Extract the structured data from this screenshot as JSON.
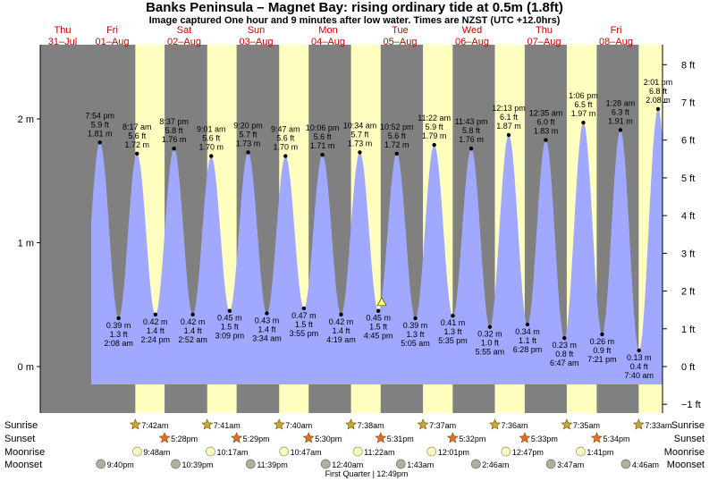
{
  "title": "Banks Peninsula – Magnet Bay: rising  ordinary tide at 0.5m (1.8ft)",
  "subtitle": "Image captured One hour and 9 minutes after low water. Times are NZST (UTC +12.0hrs)",
  "colors": {
    "night": "#808080",
    "day": "#ffffc0",
    "tide_fill": "#a0a8ff",
    "day_label": "#cc0000",
    "sun_star": "#c8a830",
    "sunset_star": "#e07030",
    "moonrise_disc": "#ffffc0",
    "moonset_disc": "#b0b0a0"
  },
  "chart_data": {
    "type": "area",
    "title": "Banks Peninsula – Magnet Bay: rising  ordinary tide at 0.5m (1.8ft)",
    "x_range_hours": [
      0,
      207.5
    ],
    "ylim_m": [
      -0.15,
      2.4
    ],
    "left_axis": {
      "unit": "m",
      "ticks": [
        {
          "v": 0,
          "label": "0 m"
        },
        {
          "v": 1,
          "label": "1 m"
        },
        {
          "v": 2,
          "label": "2 m"
        }
      ]
    },
    "right_axis": {
      "unit": "ft",
      "ticks": [
        "8 ft",
        "7 ft",
        "6 ft",
        "5 ft",
        "4 ft",
        "3 ft",
        "2 ft",
        "1 ft",
        "0 ft",
        "−1 ft"
      ]
    },
    "days": [
      {
        "name": "Thu",
        "date": "31–Jul"
      },
      {
        "name": "Fri",
        "date": "01–Aug"
      },
      {
        "name": "Sat",
        "date": "02–Aug"
      },
      {
        "name": "Sun",
        "date": "03–Aug"
      },
      {
        "name": "Mon",
        "date": "04–Aug"
      },
      {
        "name": "Tue",
        "date": "05–Aug"
      },
      {
        "name": "Wed",
        "date": "06–Aug"
      },
      {
        "name": "Thu",
        "date": "07–Aug"
      },
      {
        "name": "Fri",
        "date": "08–Aug"
      }
    ],
    "tides": [
      {
        "type": "high",
        "time": "7:54 pm",
        "ft": "5.9 ft",
        "m": "1.81 m",
        "h": 19.9,
        "v": 1.81
      },
      {
        "type": "low",
        "time": "2:08 am",
        "ft": "1.3 ft",
        "m": "0.39 m",
        "h": 26.13,
        "v": 0.39
      },
      {
        "type": "high",
        "time": "8:17 am",
        "ft": "5.6 ft",
        "m": "1.72 m",
        "h": 32.28,
        "v": 1.72
      },
      {
        "type": "low",
        "time": "2:24 pm",
        "ft": "1.4 ft",
        "m": "0.42 m",
        "h": 38.4,
        "v": 0.42
      },
      {
        "type": "high",
        "time": "8:37 pm",
        "ft": "5.8 ft",
        "m": "1.76 m",
        "h": 44.62,
        "v": 1.76
      },
      {
        "type": "low",
        "time": "2:52 am",
        "ft": "1.4 ft",
        "m": "0.42 m",
        "h": 50.87,
        "v": 0.42
      },
      {
        "type": "high",
        "time": "9:01 am",
        "ft": "5.6 ft",
        "m": "1.70 m",
        "h": 57.02,
        "v": 1.7
      },
      {
        "type": "low",
        "time": "3:09 pm",
        "ft": "1.5 ft",
        "m": "0.45 m",
        "h": 63.15,
        "v": 0.45
      },
      {
        "type": "high",
        "time": "9:20 pm",
        "ft": "5.7 ft",
        "m": "1.73 m",
        "h": 69.33,
        "v": 1.73
      },
      {
        "type": "low",
        "time": "3:34 am",
        "ft": "1.4 ft",
        "m": "0.43 m",
        "h": 75.57,
        "v": 0.43
      },
      {
        "type": "high",
        "time": "9:47 am",
        "ft": "5.6 ft",
        "m": "1.70 m",
        "h": 81.78,
        "v": 1.7
      },
      {
        "type": "low",
        "time": "3:55 pm",
        "ft": "1.5 ft",
        "m": "0.47 m",
        "h": 87.92,
        "v": 0.47
      },
      {
        "type": "high",
        "time": "10:06 pm",
        "ft": "5.6 ft",
        "m": "1.71 m",
        "h": 94.1,
        "v": 1.71
      },
      {
        "type": "low",
        "time": "4:19 am",
        "ft": "1.4 ft",
        "m": "0.42 m",
        "h": 100.32,
        "v": 0.42
      },
      {
        "type": "high",
        "time": "10:34 am",
        "ft": "5.7 ft",
        "m": "1.73 m",
        "h": 106.57,
        "v": 1.73
      },
      {
        "type": "low",
        "time": "4:45 pm",
        "ft": "1.5 ft",
        "m": "0.45 m",
        "h": 112.75,
        "v": 0.45
      },
      {
        "type": "high",
        "time": "10:52 pm",
        "ft": "5.6 ft",
        "m": "1.72 m",
        "h": 118.87,
        "v": 1.72
      },
      {
        "type": "low",
        "time": "5:05 am",
        "ft": "1.3 ft",
        "m": "0.39 m",
        "h": 125.08,
        "v": 0.39
      },
      {
        "type": "high",
        "time": "11:22 am",
        "ft": "5.9 ft",
        "m": "1.79 m",
        "h": 131.37,
        "v": 1.79
      },
      {
        "type": "low",
        "time": "5:35 pm",
        "ft": "1.3 ft",
        "m": "0.41 m",
        "h": 137.58,
        "v": 0.41
      },
      {
        "type": "high",
        "time": "11:43 pm",
        "ft": "5.8 ft",
        "m": "1.76 m",
        "h": 143.72,
        "v": 1.76
      },
      {
        "type": "low",
        "time": "5:55 am",
        "ft": "1.0 ft",
        "m": "0.32 m",
        "h": 149.92,
        "v": 0.32
      },
      {
        "type": "high",
        "time": "12:13 pm",
        "ft": "6.1 ft",
        "m": "1.87 m",
        "h": 156.22,
        "v": 1.87
      },
      {
        "type": "low",
        "time": "6:28 pm",
        "ft": "1.1 ft",
        "m": "0.34 m",
        "h": 162.47,
        "v": 0.34
      },
      {
        "type": "high",
        "time": "12:35 am",
        "ft": "6.0 ft",
        "m": "1.83 m",
        "h": 168.58,
        "v": 1.83
      },
      {
        "type": "low",
        "time": "6:47 am",
        "ft": "0.8 ft",
        "m": "0.23 m",
        "h": 174.78,
        "v": 0.23
      },
      {
        "type": "high",
        "time": "1:06 pm",
        "ft": "6.5 ft",
        "m": "1.97 m",
        "h": 181.1,
        "v": 1.97
      },
      {
        "type": "low",
        "time": "7:21 pm",
        "ft": "0.9 ft",
        "m": "0.26 m",
        "h": 187.35,
        "v": 0.26
      },
      {
        "type": "high",
        "time": "1:28 am",
        "ft": "6.3 ft",
        "m": "1.91 m",
        "h": 193.47,
        "v": 1.91
      },
      {
        "type": "low",
        "time": "7:40 am",
        "ft": "0.4 ft",
        "m": "0.13 m",
        "h": 199.67,
        "v": 0.13
      },
      {
        "type": "high",
        "time": "2:01 pm",
        "ft": "6.8 ft",
        "m": "2.08 m",
        "h": 206.02,
        "v": 2.08
      }
    ],
    "now_marker": {
      "h": 113.9,
      "v": 0.5
    },
    "daylight": [
      {
        "rise_h": 31.7,
        "set_h": 41.47
      },
      {
        "rise_h": 55.68,
        "set_h": 65.48
      },
      {
        "rise_h": 79.67,
        "set_h": 89.5
      },
      {
        "rise_h": 103.63,
        "set_h": 113.52
      },
      {
        "rise_h": 127.62,
        "set_h": 137.53
      },
      {
        "rise_h": 151.6,
        "set_h": 161.55
      },
      {
        "rise_h": 175.58,
        "set_h": 185.57
      },
      {
        "rise_h": 199.55,
        "set_h": 207.5
      }
    ],
    "moon_phase": "First Quarter | 12:49pm",
    "moon_phase_h": 108.82
  },
  "events": {
    "row_labels": [
      "Sunrise",
      "Sunset",
      "Moonrise",
      "Moonset"
    ],
    "sunrise": [
      {
        "t": "7:42am",
        "h": 31.7
      },
      {
        "t": "7:41am",
        "h": 55.68
      },
      {
        "t": "7:40am",
        "h": 79.67
      },
      {
        "t": "7:38am",
        "h": 103.63
      },
      {
        "t": "7:37am",
        "h": 127.62
      },
      {
        "t": "7:36am",
        "h": 151.6
      },
      {
        "t": "7:35am",
        "h": 175.58
      },
      {
        "t": "7:33am",
        "h": 199.55
      }
    ],
    "sunset": [
      {
        "t": "5:28pm",
        "h": 41.47
      },
      {
        "t": "5:29pm",
        "h": 65.48
      },
      {
        "t": "5:30pm",
        "h": 89.5
      },
      {
        "t": "5:31pm",
        "h": 113.52
      },
      {
        "t": "5:32pm",
        "h": 137.53
      },
      {
        "t": "5:33pm",
        "h": 161.55
      },
      {
        "t": "5:34pm",
        "h": 185.57
      }
    ],
    "moonrise": [
      {
        "t": "9:48am",
        "h": 33.8
      },
      {
        "t": "10:17am",
        "h": 58.28
      },
      {
        "t": "10:47am",
        "h": 82.78
      },
      {
        "t": "11:22am",
        "h": 107.37
      },
      {
        "t": "12:01pm",
        "h": 132.02
      },
      {
        "t": "12:47pm",
        "h": 156.78
      },
      {
        "t": "1:41pm",
        "h": 181.68
      }
    ],
    "moonset": [
      {
        "t": "9:40pm",
        "h": 21.67
      },
      {
        "t": "10:39pm",
        "h": 46.65
      },
      {
        "t": "11:39pm",
        "h": 71.65
      },
      {
        "t": "12:40am",
        "h": 96.67
      },
      {
        "t": "1:43am",
        "h": 121.72
      },
      {
        "t": "2:46am",
        "h": 146.77
      },
      {
        "t": "3:47am",
        "h": 171.78
      },
      {
        "t": "4:46am",
        "h": 196.77
      }
    ]
  }
}
